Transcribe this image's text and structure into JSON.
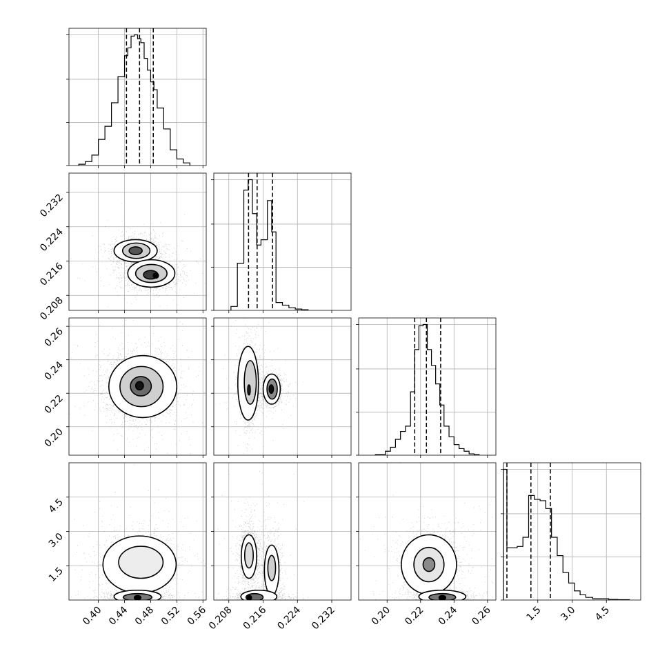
{
  "chart_data": {
    "type": "corner",
    "grid": true,
    "parameters": [
      {
        "range": [
          0.355,
          0.565
        ],
        "ticks": [
          0.4,
          0.44,
          0.48,
          0.52,
          0.56
        ],
        "tick_labels": [
          "0.40",
          "0.44",
          "0.48",
          "0.52",
          "0.56"
        ],
        "quantile_lines": [
          0.443,
          0.463,
          0.484
        ],
        "histogram": {
          "bin_edges": [
            0.37,
            0.38,
            0.39,
            0.4,
            0.41,
            0.42,
            0.43,
            0.44,
            0.445,
            0.45,
            0.455,
            0.46,
            0.465,
            0.47,
            0.475,
            0.48,
            0.485,
            0.49,
            0.5,
            0.51,
            0.52,
            0.53,
            0.54
          ],
          "counts": [
            1,
            3,
            8,
            20,
            30,
            48,
            68,
            84,
            90,
            99,
            100,
            97,
            94,
            82,
            73,
            64,
            58,
            44,
            28,
            12,
            5,
            2
          ]
        }
      },
      {
        "range": [
          0.2045,
          0.2365
        ],
        "ticks": [
          0.208,
          0.216,
          0.224,
          0.232
        ],
        "tick_labels": [
          "0.208",
          "0.216",
          "0.224",
          "0.232"
        ],
        "quantile_lines": [
          0.2126,
          0.2146,
          0.2182
        ],
        "histogram": {
          "bin_edges": [
            0.2085,
            0.21,
            0.2115,
            0.2125,
            0.2135,
            0.2145,
            0.2155,
            0.217,
            0.218,
            0.219,
            0.2205,
            0.222,
            0.2235,
            0.225,
            0.2265
          ],
          "counts": [
            3,
            36,
            92,
            100,
            74,
            50,
            54,
            84,
            60,
            6,
            4,
            2,
            1,
            0.5
          ]
        }
      },
      {
        "range": [
          0.183,
          0.265
        ],
        "ticks": [
          0.2,
          0.22,
          0.24,
          0.26
        ],
        "tick_labels": [
          "0.20",
          "0.22",
          "0.24",
          "0.26"
        ],
        "quantile_lines": [
          0.2165,
          0.2235,
          0.232
        ],
        "histogram": {
          "bin_edges": [
            0.193,
            0.199,
            0.202,
            0.205,
            0.208,
            0.211,
            0.214,
            0.2165,
            0.219,
            0.2215,
            0.224,
            0.2265,
            0.229,
            0.2315,
            0.234,
            0.237,
            0.24,
            0.243,
            0.246,
            0.249,
            0.252,
            0.255
          ],
          "counts": [
            0.5,
            3,
            6,
            12,
            18,
            22,
            48,
            80,
            98,
            99,
            80,
            68,
            54,
            38,
            22,
            14,
            8,
            5,
            3,
            1,
            0.5
          ]
        }
      },
      {
        "range": [
          0.0,
          6.0
        ],
        "ticks": [
          1.5,
          3.0,
          4.5
        ],
        "tick_labels": [
          "1.5",
          "3.0",
          "4.5"
        ],
        "quantile_lines": [
          0.15,
          1.2,
          2.05
        ],
        "histogram": {
          "bin_edges": [
            0.0,
            0.15,
            0.35,
            0.6,
            0.85,
            1.1,
            1.35,
            1.6,
            1.85,
            2.1,
            2.35,
            2.6,
            2.85,
            3.1,
            3.35,
            3.6,
            3.9,
            4.2,
            4.6,
            5.0,
            5.5
          ],
          "counts": [
            100,
            40,
            40,
            41,
            48,
            80,
            77,
            76,
            70,
            48,
            34,
            21,
            13,
            7,
            4,
            2,
            1,
            1,
            0.5,
            0.3
          ]
        }
      }
    ],
    "pairs": [
      {
        "x": 0,
        "y": 1,
        "blobs": [
          {
            "cx": 0.46,
            "cy": 0.2182,
            "sx": 0.018,
            "sy": 0.0017,
            "weight": 0.5
          },
          {
            "cx": 0.48,
            "cy": 0.2128,
            "sx": 0.021,
            "sy": 0.0017,
            "weight": 0.5
          }
        ],
        "contours": [
          {
            "cx": 0.457,
            "cy": 0.2184,
            "rx": 0.033,
            "ry": 0.0026,
            "fill": "#ffffff"
          },
          {
            "cx": 0.458,
            "cy": 0.2184,
            "rx": 0.021,
            "ry": 0.0018,
            "fill": "#cfcfcf"
          },
          {
            "cx": 0.457,
            "cy": 0.2184,
            "rx": 0.01,
            "ry": 0.0009,
            "fill": "#555555"
          },
          {
            "cx": 0.481,
            "cy": 0.2131,
            "rx": 0.036,
            "ry": 0.0032,
            "fill": "#ffffff"
          },
          {
            "cx": 0.481,
            "cy": 0.2131,
            "rx": 0.024,
            "ry": 0.0021,
            "fill": "#cfcfcf"
          },
          {
            "cx": 0.48,
            "cy": 0.2128,
            "rx": 0.011,
            "ry": 0.001,
            "fill": "#3a3a3a"
          },
          {
            "cx": 0.488,
            "cy": 0.2126,
            "rx": 0.004,
            "ry": 0.0006,
            "fill": "#000000"
          }
        ]
      },
      {
        "x": 0,
        "y": 2,
        "blobs": [
          {
            "cx": 0.465,
            "cy": 0.2245,
            "sx": 0.026,
            "sy": 0.0095,
            "weight": 1.0
          }
        ],
        "contours": [
          {
            "cx": 0.468,
            "cy": 0.224,
            "rx": 0.052,
            "ry": 0.0185,
            "fill": "#ffffff"
          },
          {
            "cx": 0.466,
            "cy": 0.224,
            "rx": 0.033,
            "ry": 0.012,
            "fill": "#cfcfcf"
          },
          {
            "cx": 0.465,
            "cy": 0.2242,
            "rx": 0.016,
            "ry": 0.0058,
            "fill": "#6a6a6a"
          },
          {
            "cx": 0.463,
            "cy": 0.2245,
            "rx": 0.006,
            "ry": 0.0025,
            "fill": "#111111"
          }
        ]
      },
      {
        "x": 1,
        "y": 2,
        "blobs": [
          {
            "cx": 0.2128,
            "cy": 0.2255,
            "sx": 0.0012,
            "sy": 0.012,
            "weight": 0.55
          },
          {
            "cx": 0.218,
            "cy": 0.2225,
            "sx": 0.0012,
            "sy": 0.0045,
            "weight": 0.45
          }
        ],
        "contours": [
          {
            "cx": 0.2125,
            "cy": 0.226,
            "rx": 0.0024,
            "ry": 0.022,
            "fill": "#ffffff"
          },
          {
            "cx": 0.213,
            "cy": 0.2265,
            "rx": 0.0014,
            "ry": 0.013,
            "fill": "#d0d0d0"
          },
          {
            "cx": 0.2127,
            "cy": 0.222,
            "rx": 0.0003,
            "ry": 0.003,
            "fill": "#222222"
          },
          {
            "cx": 0.218,
            "cy": 0.2225,
            "rx": 0.002,
            "ry": 0.009,
            "fill": "#ffffff"
          },
          {
            "cx": 0.2181,
            "cy": 0.2225,
            "rx": 0.0012,
            "ry": 0.006,
            "fill": "#8a8a8a"
          },
          {
            "cx": 0.2179,
            "cy": 0.2225,
            "rx": 0.0005,
            "ry": 0.0025,
            "fill": "#111111"
          }
        ]
      },
      {
        "x": 0,
        "y": 3,
        "blobs": [
          {
            "cx": 0.462,
            "cy": 1.7,
            "sx": 0.028,
            "sy": 0.65,
            "weight": 0.62
          },
          {
            "cx": 0.46,
            "cy": 0.15,
            "sx": 0.022,
            "sy": 0.12,
            "weight": 0.38
          }
        ],
        "contours": [
          {
            "cx": 0.463,
            "cy": 1.55,
            "rx": 0.056,
            "ry": 1.25,
            "fill": "#ffffff"
          },
          {
            "cx": 0.465,
            "cy": 1.65,
            "rx": 0.034,
            "ry": 0.7,
            "fill": "#ededed"
          },
          {
            "cx": 0.46,
            "cy": 0.15,
            "rx": 0.036,
            "ry": 0.28,
            "fill": "#ffffff"
          },
          {
            "cx": 0.46,
            "cy": 0.12,
            "rx": 0.022,
            "ry": 0.16,
            "fill": "#7a7a7a"
          },
          {
            "cx": 0.46,
            "cy": 0.1,
            "rx": 0.005,
            "ry": 0.1,
            "fill": "#000000"
          }
        ]
      },
      {
        "x": 1,
        "y": 3,
        "blobs": [
          {
            "cx": 0.2128,
            "cy": 2.0,
            "sx": 0.0013,
            "sy": 0.75,
            "weight": 0.45
          },
          {
            "cx": 0.218,
            "cy": 1.35,
            "sx": 0.0012,
            "sy": 0.75,
            "weight": 0.3
          },
          {
            "cx": 0.215,
            "cy": 0.15,
            "sx": 0.003,
            "sy": 0.12,
            "weight": 0.25
          }
        ],
        "contours": [
          {
            "cx": 0.2127,
            "cy": 1.9,
            "rx": 0.0018,
            "ry": 0.95,
            "fill": "#ffffff"
          },
          {
            "cx": 0.2127,
            "cy": 1.95,
            "rx": 0.001,
            "ry": 0.55,
            "fill": "#dcdcdc"
          },
          {
            "cx": 0.218,
            "cy": 1.3,
            "rx": 0.0017,
            "ry": 1.1,
            "fill": "#ffffff"
          },
          {
            "cx": 0.218,
            "cy": 1.4,
            "rx": 0.0009,
            "ry": 0.55,
            "fill": "#cfcfcf"
          },
          {
            "cx": 0.215,
            "cy": 0.15,
            "rx": 0.0042,
            "ry": 0.28,
            "fill": "#ffffff"
          },
          {
            "cx": 0.214,
            "cy": 0.12,
            "rx": 0.002,
            "ry": 0.16,
            "fill": "#6a6a6a"
          },
          {
            "cx": 0.2128,
            "cy": 0.1,
            "rx": 0.0005,
            "ry": 0.1,
            "fill": "#000000"
          }
        ]
      },
      {
        "x": 2,
        "y": 3,
        "blobs": [
          {
            "cx": 0.226,
            "cy": 1.6,
            "sx": 0.0085,
            "sy": 0.7,
            "weight": 0.62
          },
          {
            "cx": 0.233,
            "cy": 0.15,
            "sx": 0.008,
            "sy": 0.12,
            "weight": 0.38
          }
        ],
        "contours": [
          {
            "cx": 0.225,
            "cy": 1.55,
            "rx": 0.0165,
            "ry": 1.3,
            "fill": "#ffffff"
          },
          {
            "cx": 0.225,
            "cy": 1.55,
            "rx": 0.009,
            "ry": 0.75,
            "fill": "#e6e6e6"
          },
          {
            "cx": 0.225,
            "cy": 1.55,
            "rx": 0.0035,
            "ry": 0.3,
            "fill": "#8a8a8a"
          },
          {
            "cx": 0.233,
            "cy": 0.15,
            "rx": 0.014,
            "ry": 0.28,
            "fill": "#ffffff"
          },
          {
            "cx": 0.233,
            "cy": 0.12,
            "rx": 0.008,
            "ry": 0.16,
            "fill": "#7a7a7a"
          },
          {
            "cx": 0.233,
            "cy": 0.1,
            "rx": 0.002,
            "ry": 0.1,
            "fill": "#000000"
          }
        ]
      }
    ]
  }
}
